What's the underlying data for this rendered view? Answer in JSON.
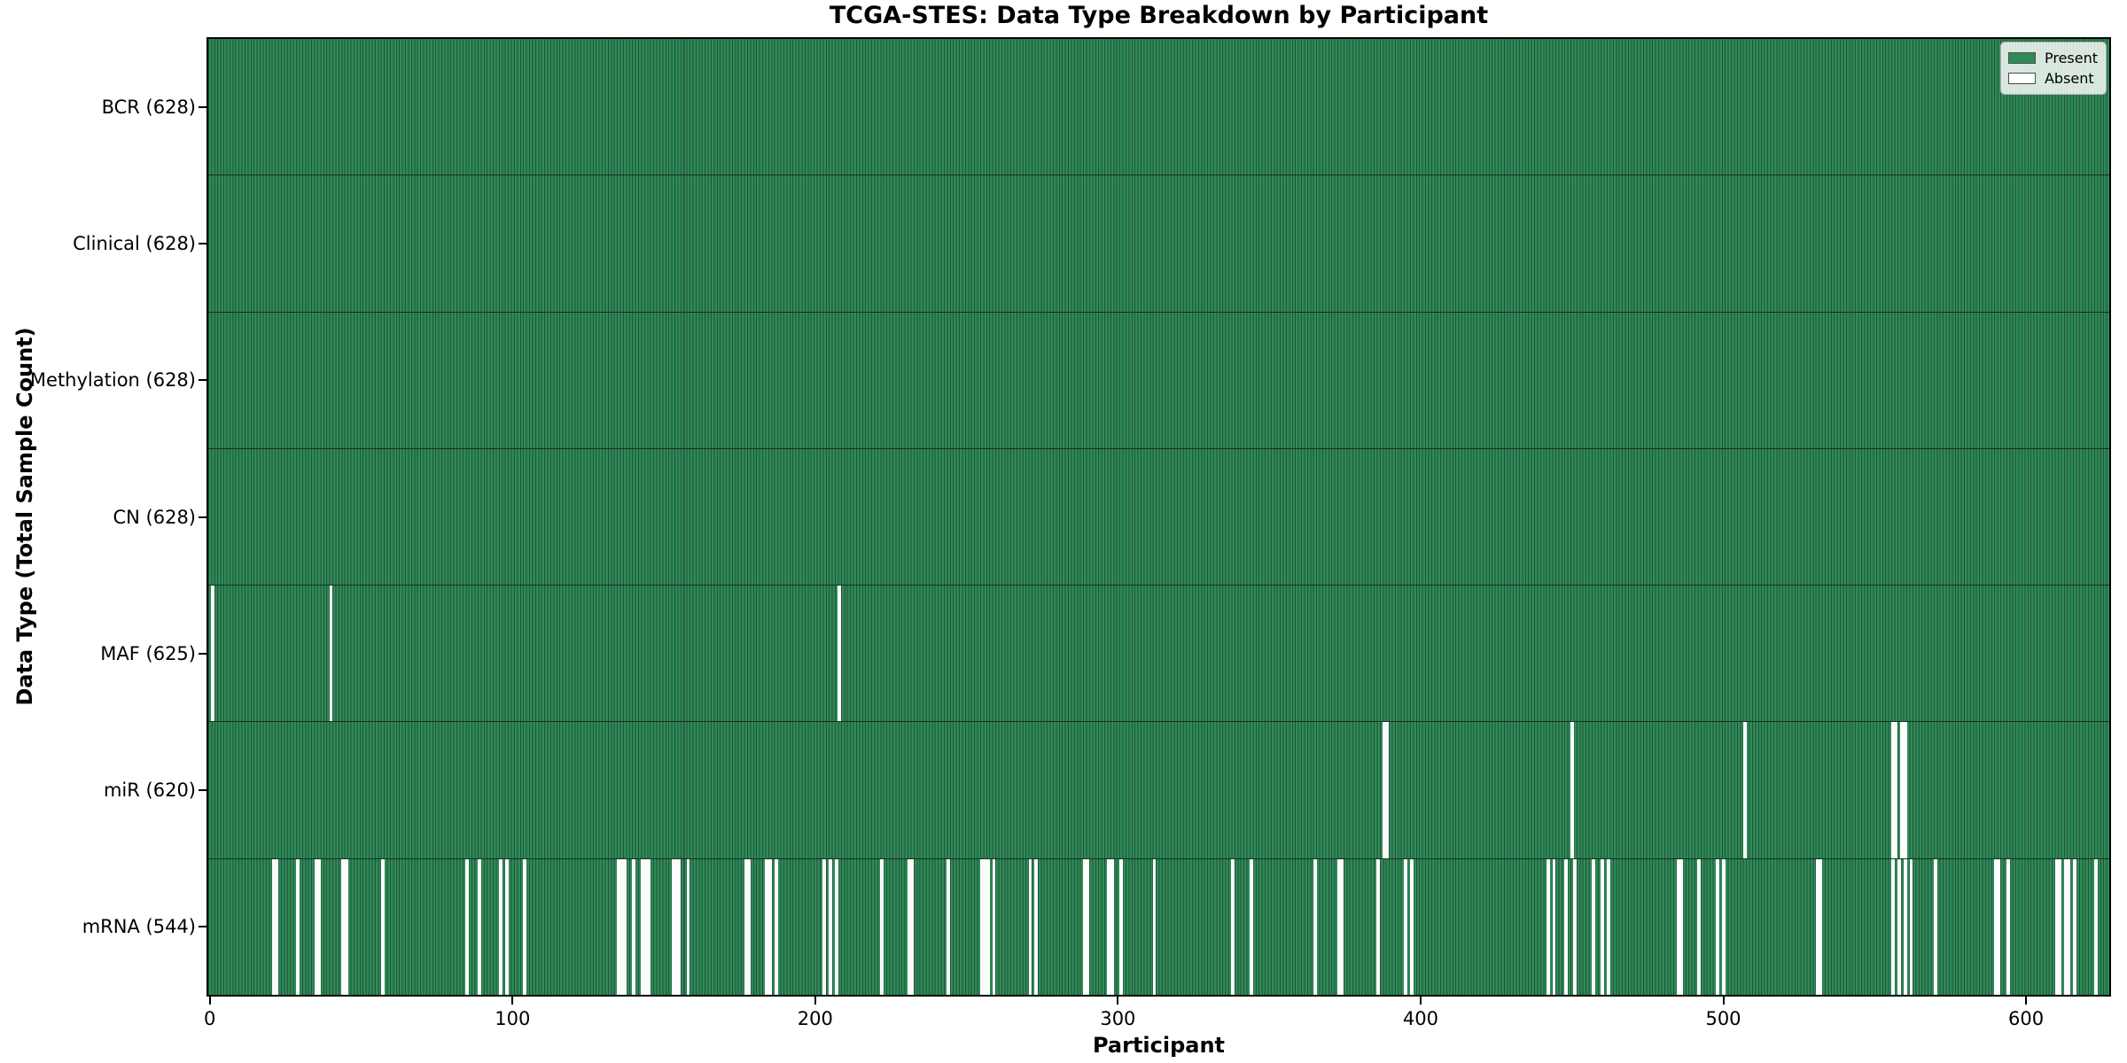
{
  "chart_data": {
    "type": "heatmap",
    "title": "TCGA-STES: Data Type Breakdown by Participant",
    "xlabel": "Participant",
    "ylabel": "Data Type (Total Sample Count)",
    "x_ticks": [
      0,
      100,
      200,
      300,
      400,
      500,
      600
    ],
    "xlim": [
      -0.5,
      627.5
    ],
    "n_participants": 628,
    "grid": false,
    "legend_position": "upper right",
    "present_color": "#2e8b57",
    "bar_edge_color": "#23513a",
    "absent_color": "#fcfcfc",
    "legend": [
      {
        "label": "Present",
        "color": "#2e8b57"
      },
      {
        "label": "Absent",
        "color": "#ffffff"
      }
    ],
    "rows": [
      {
        "name": "bcr",
        "label": "BCR (628)",
        "data_type": "BCR",
        "present_count": 628,
        "absent_participants": []
      },
      {
        "name": "clinical",
        "label": "Clinical (628)",
        "data_type": "Clinical",
        "present_count": 628,
        "absent_participants": []
      },
      {
        "name": "methylation",
        "label": "Methylation (628)",
        "data_type": "Methylation",
        "present_count": 628,
        "absent_participants": []
      },
      {
        "name": "cn",
        "label": "CN (628)",
        "data_type": "CN",
        "present_count": 628,
        "absent_participants": []
      },
      {
        "name": "maf",
        "label": "MAF (625)",
        "data_type": "MAF",
        "present_count": 625,
        "absent_participants": [
          1,
          40,
          208
        ]
      },
      {
        "name": "mir",
        "label": "miR (620)",
        "data_type": "miR",
        "present_count": 620,
        "absent_participants": [
          388,
          389,
          450,
          507,
          556,
          557,
          559,
          560
        ]
      },
      {
        "name": "mrna",
        "label": "mRNA (544)",
        "data_type": "mRNA",
        "present_count": 544,
        "absent_participants": [
          21,
          22,
          29,
          35,
          36,
          44,
          45,
          57,
          85,
          89,
          96,
          98,
          104,
          135,
          136,
          137,
          140,
          143,
          144,
          145,
          153,
          154,
          155,
          158,
          177,
          178,
          184,
          185,
          187,
          203,
          205,
          207,
          222,
          231,
          232,
          244,
          255,
          256,
          257,
          259,
          271,
          273,
          289,
          290,
          297,
          298,
          301,
          312,
          338,
          344,
          365,
          373,
          374,
          386,
          395,
          397,
          442,
          444,
          448,
          451,
          457,
          460,
          462,
          485,
          486,
          492,
          498,
          500,
          531,
          532,
          556,
          558,
          560,
          562,
          570,
          590,
          591,
          594,
          610,
          611,
          613,
          614,
          616,
          623
        ]
      }
    ]
  }
}
